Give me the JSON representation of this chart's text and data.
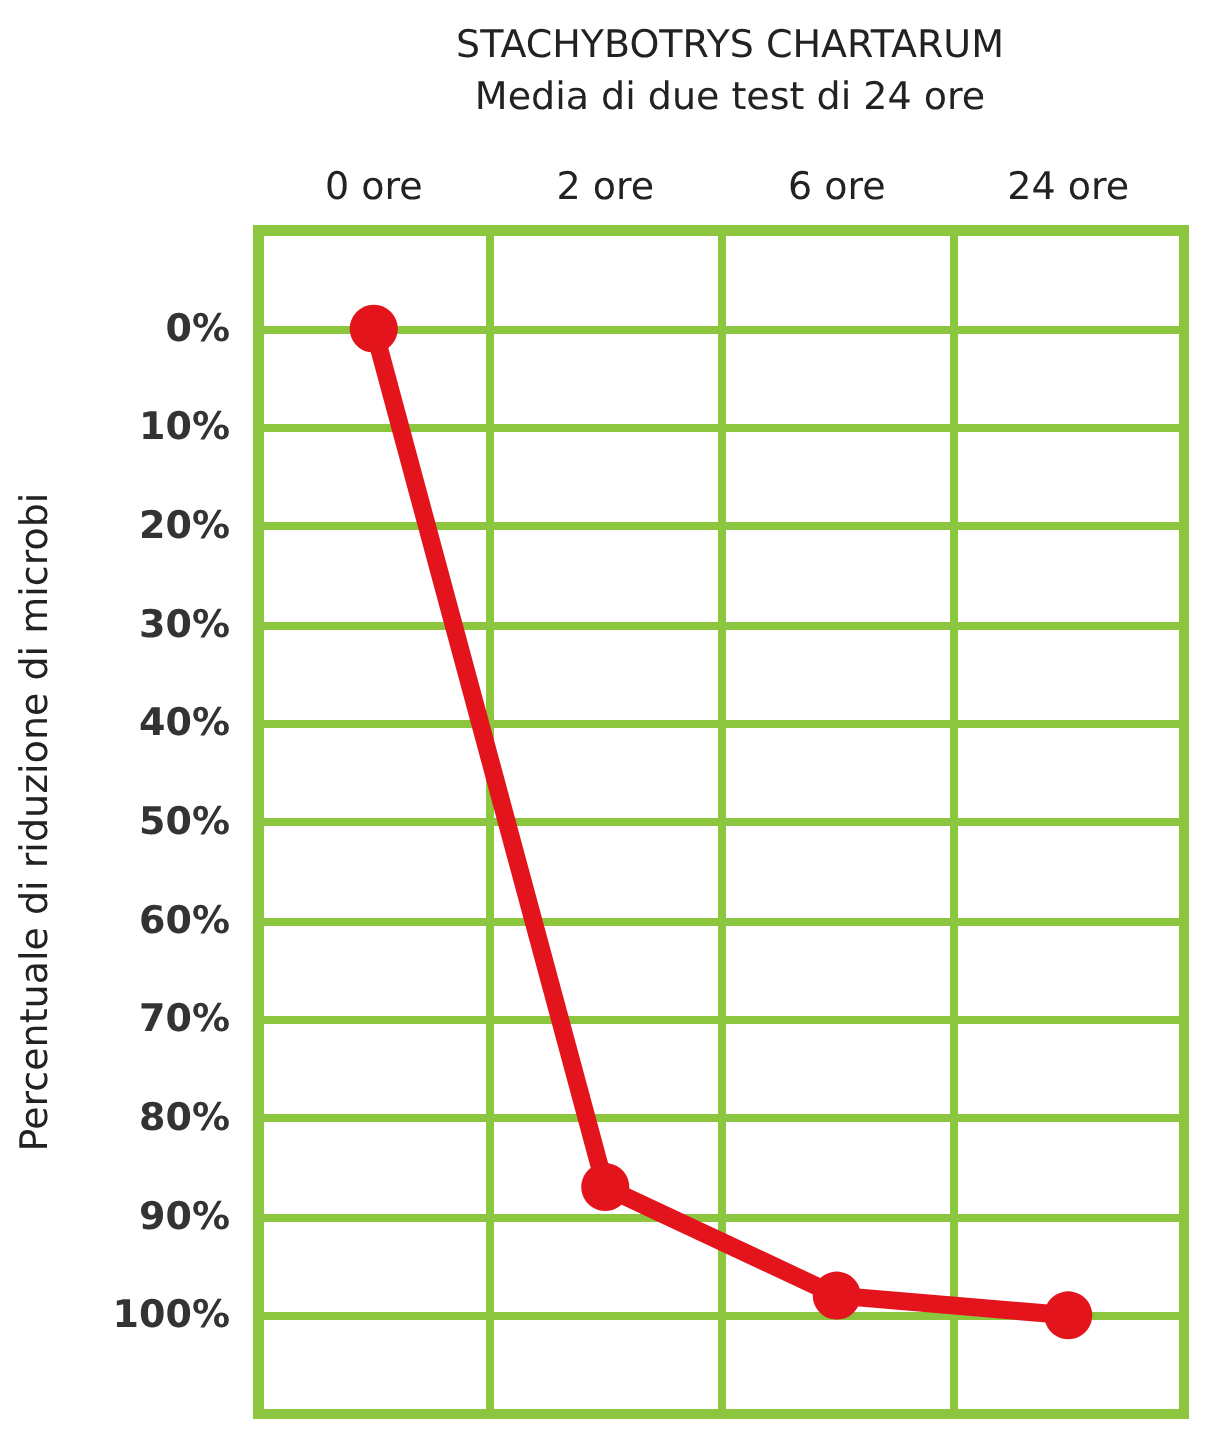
{
  "chart_data": {
    "type": "line",
    "title": "STACHYBOTRYS CHARTARUM",
    "subtitle": "Media di due test di 24 ore",
    "ylabel": "Percentuale di riduzione di microbi",
    "categories": [
      "0 ore",
      "2 ore",
      "6 ore",
      "24 ore"
    ],
    "series": [
      {
        "color": "#e3141b",
        "values": [
          0,
          87,
          98,
          100
        ]
      }
    ],
    "ylim": [
      110,
      -10
    ],
    "yticks": [
      {
        "value": 0,
        "label": "0%"
      },
      {
        "value": 10,
        "label": "10%"
      },
      {
        "value": 20,
        "label": "20%"
      },
      {
        "value": 30,
        "label": "30%"
      },
      {
        "value": 40,
        "label": "40%"
      },
      {
        "value": 50,
        "label": "50%"
      },
      {
        "value": 60,
        "label": "60%"
      },
      {
        "value": 70,
        "label": "70%"
      },
      {
        "value": 80,
        "label": "80%"
      },
      {
        "value": 90,
        "label": "90%"
      },
      {
        "value": 100,
        "label": "100%"
      }
    ],
    "grid": true,
    "marker": "circle",
    "line_style": "solid"
  }
}
